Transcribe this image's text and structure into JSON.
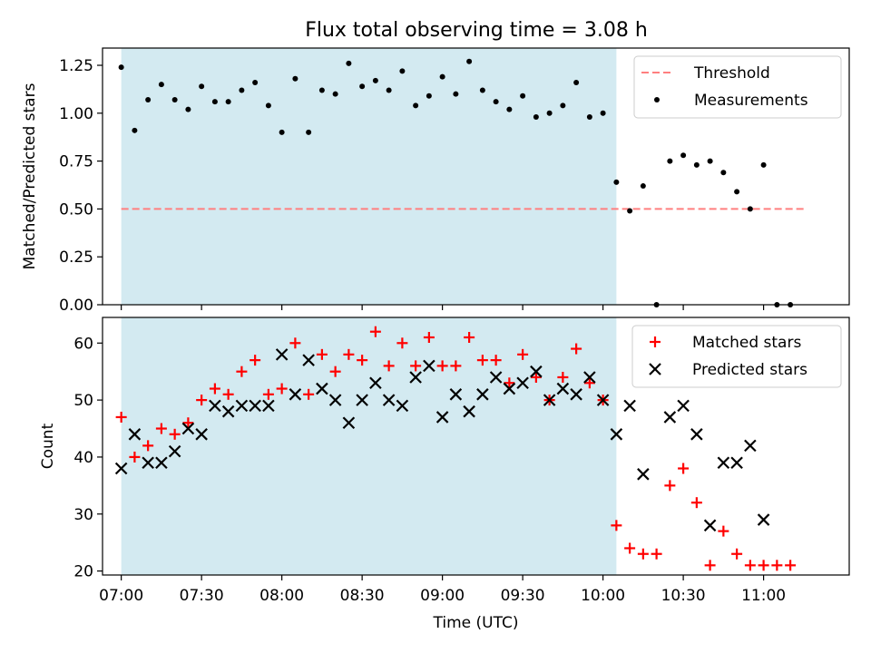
{
  "chart_data": [
    {
      "type": "scatter",
      "title": "Flux total observing time = 3.08 h",
      "xlabel": "",
      "ylabel": "Matched/Predicted stars",
      "xlim": [
        "06:53",
        "11:32"
      ],
      "ylim": [
        0,
        1.34
      ],
      "yticks": [
        "0.00",
        "0.25",
        "0.50",
        "0.75",
        "1.00",
        "1.25"
      ],
      "shaded_interval": [
        "07:00",
        "10:05"
      ],
      "shade_color": "#d3eaf1",
      "threshold": {
        "name": "Threshold",
        "value": 0.5,
        "x": [
          "07:00",
          "11:15"
        ],
        "color": "#ff7f7f"
      },
      "legend": {
        "placement": "top-right",
        "entries": [
          "Threshold",
          "Measurements"
        ]
      },
      "series": [
        {
          "name": "Measurements",
          "color": "#000000",
          "marker": "dot",
          "points": [
            [
              "07:00",
              1.24
            ],
            [
              "07:05",
              0.91
            ],
            [
              "07:10",
              1.07
            ],
            [
              "07:15",
              1.15
            ],
            [
              "07:20",
              1.07
            ],
            [
              "07:25",
              1.02
            ],
            [
              "07:30",
              1.14
            ],
            [
              "07:35",
              1.06
            ],
            [
              "07:40",
              1.06
            ],
            [
              "07:45",
              1.12
            ],
            [
              "07:50",
              1.16
            ],
            [
              "07:55",
              1.04
            ],
            [
              "08:00",
              0.9
            ],
            [
              "08:05",
              1.18
            ],
            [
              "08:10",
              0.9
            ],
            [
              "08:15",
              1.12
            ],
            [
              "08:20",
              1.1
            ],
            [
              "08:25",
              1.26
            ],
            [
              "08:30",
              1.14
            ],
            [
              "08:35",
              1.17
            ],
            [
              "08:40",
              1.12
            ],
            [
              "08:45",
              1.22
            ],
            [
              "08:50",
              1.04
            ],
            [
              "08:55",
              1.09
            ],
            [
              "09:00",
              1.19
            ],
            [
              "09:05",
              1.1
            ],
            [
              "09:10",
              1.27
            ],
            [
              "09:15",
              1.12
            ],
            [
              "09:20",
              1.06
            ],
            [
              "09:25",
              1.02
            ],
            [
              "09:30",
              1.09
            ],
            [
              "09:35",
              0.98
            ],
            [
              "09:40",
              1.0
            ],
            [
              "09:45",
              1.04
            ],
            [
              "09:50",
              1.16
            ],
            [
              "09:55",
              0.98
            ],
            [
              "10:00",
              1.0
            ],
            [
              "10:05",
              0.64
            ],
            [
              "10:10",
              0.49
            ],
            [
              "10:15",
              0.62
            ],
            [
              "10:20",
              0.0
            ],
            [
              "10:25",
              0.75
            ],
            [
              "10:30",
              0.78
            ],
            [
              "10:35",
              0.73
            ],
            [
              "10:40",
              0.75
            ],
            [
              "10:45",
              0.69
            ],
            [
              "10:50",
              0.59
            ],
            [
              "10:55",
              0.5
            ],
            [
              "11:00",
              0.73
            ],
            [
              "11:05",
              0.0
            ],
            [
              "11:10",
              0.0
            ]
          ]
        }
      ]
    },
    {
      "type": "scatter",
      "title": "",
      "xlabel": "Time (UTC)",
      "ylabel": "Count",
      "xlim": [
        "06:53",
        "11:32"
      ],
      "ylim": [
        19.3,
        64.5
      ],
      "xticks": [
        "07:00",
        "07:30",
        "08:00",
        "08:30",
        "09:00",
        "09:30",
        "10:00",
        "10:30",
        "11:00"
      ],
      "yticks": [
        "20",
        "30",
        "40",
        "50",
        "60"
      ],
      "shaded_interval": [
        "07:00",
        "10:05"
      ],
      "shade_color": "#d3eaf1",
      "legend": {
        "placement": "top-right",
        "entries": [
          "Matched stars",
          "Predicted stars"
        ]
      },
      "series": [
        {
          "name": "Matched stars",
          "color": "#ff0000",
          "marker": "plus",
          "points": [
            [
              "07:00",
              47
            ],
            [
              "07:05",
              40
            ],
            [
              "07:10",
              42
            ],
            [
              "07:15",
              45
            ],
            [
              "07:20",
              44
            ],
            [
              "07:25",
              46
            ],
            [
              "07:30",
              50
            ],
            [
              "07:35",
              52
            ],
            [
              "07:40",
              51
            ],
            [
              "07:45",
              55
            ],
            [
              "07:50",
              57
            ],
            [
              "07:55",
              51
            ],
            [
              "08:00",
              52
            ],
            [
              "08:05",
              60
            ],
            [
              "08:10",
              51
            ],
            [
              "08:15",
              58
            ],
            [
              "08:20",
              55
            ],
            [
              "08:25",
              58
            ],
            [
              "08:30",
              57
            ],
            [
              "08:35",
              62
            ],
            [
              "08:40",
              56
            ],
            [
              "08:45",
              60
            ],
            [
              "08:50",
              56
            ],
            [
              "08:55",
              61
            ],
            [
              "09:00",
              56
            ],
            [
              "09:05",
              56
            ],
            [
              "09:10",
              61
            ],
            [
              "09:15",
              57
            ],
            [
              "09:20",
              57
            ],
            [
              "09:25",
              53
            ],
            [
              "09:30",
              58
            ],
            [
              "09:35",
              54
            ],
            [
              "09:40",
              50
            ],
            [
              "09:45",
              54
            ],
            [
              "09:50",
              59
            ],
            [
              "09:55",
              53
            ],
            [
              "10:00",
              50
            ],
            [
              "10:05",
              28
            ],
            [
              "10:10",
              24
            ],
            [
              "10:15",
              23
            ],
            [
              "10:20",
              23
            ],
            [
              "10:25",
              35
            ],
            [
              "10:30",
              38
            ],
            [
              "10:35",
              32
            ],
            [
              "10:40",
              21
            ],
            [
              "10:45",
              27
            ],
            [
              "10:50",
              23
            ],
            [
              "10:55",
              21
            ],
            [
              "11:00",
              21
            ],
            [
              "11:05",
              21
            ],
            [
              "11:10",
              21
            ]
          ]
        },
        {
          "name": "Predicted stars",
          "color": "#000000",
          "marker": "x",
          "points": [
            [
              "07:00",
              38
            ],
            [
              "07:05",
              44
            ],
            [
              "07:10",
              39
            ],
            [
              "07:15",
              39
            ],
            [
              "07:20",
              41
            ],
            [
              "07:25",
              45
            ],
            [
              "07:30",
              44
            ],
            [
              "07:35",
              49
            ],
            [
              "07:40",
              48
            ],
            [
              "07:45",
              49
            ],
            [
              "07:50",
              49
            ],
            [
              "07:55",
              49
            ],
            [
              "08:00",
              58
            ],
            [
              "08:05",
              51
            ],
            [
              "08:10",
              57
            ],
            [
              "08:15",
              52
            ],
            [
              "08:20",
              50
            ],
            [
              "08:25",
              46
            ],
            [
              "08:30",
              50
            ],
            [
              "08:35",
              53
            ],
            [
              "08:40",
              50
            ],
            [
              "08:45",
              49
            ],
            [
              "08:50",
              54
            ],
            [
              "08:55",
              56
            ],
            [
              "09:00",
              47
            ],
            [
              "09:05",
              51
            ],
            [
              "09:10",
              48
            ],
            [
              "09:15",
              51
            ],
            [
              "09:20",
              54
            ],
            [
              "09:25",
              52
            ],
            [
              "09:30",
              53
            ],
            [
              "09:35",
              55
            ],
            [
              "09:40",
              50
            ],
            [
              "09:45",
              52
            ],
            [
              "09:50",
              51
            ],
            [
              "09:55",
              54
            ],
            [
              "10:00",
              50
            ],
            [
              "10:05",
              44
            ],
            [
              "10:10",
              49
            ],
            [
              "10:15",
              37
            ],
            [
              "10:25",
              47
            ],
            [
              "10:30",
              49
            ],
            [
              "10:35",
              44
            ],
            [
              "10:40",
              28
            ],
            [
              "10:45",
              39
            ],
            [
              "10:50",
              39
            ],
            [
              "10:55",
              42
            ],
            [
              "11:00",
              29
            ]
          ]
        }
      ]
    }
  ]
}
